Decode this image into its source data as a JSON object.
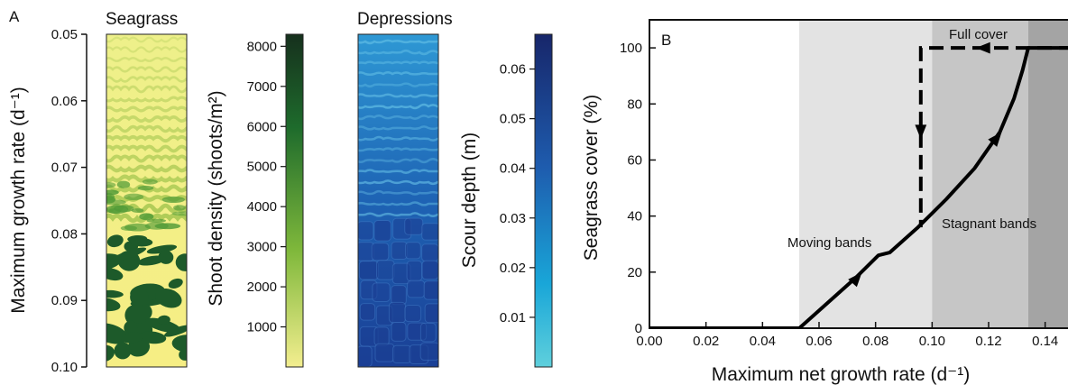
{
  "panel_a": {
    "letter": "A",
    "seagrass_title": "Seagrass",
    "depressions_title": "Depressions",
    "ylabel": "Maximum growth rate (d⁻¹)",
    "yticks": [
      "0.05",
      "0.06",
      "0.07",
      "0.08",
      "0.09",
      "0.10"
    ],
    "shoot_cbar": {
      "label": "Shoot density (shoots/m²)",
      "ticks": [
        "1000",
        "2000",
        "3000",
        "4000",
        "5000",
        "6000",
        "7000",
        "8000"
      ],
      "colors": [
        "#f3ee8f",
        "#7fb83b",
        "#1e6b2c",
        "#16301d"
      ]
    },
    "scour_cbar": {
      "label": "Scour depth (m)",
      "ticks": [
        "0.01",
        "0.02",
        "0.03",
        "0.04",
        "0.05",
        "0.06"
      ],
      "colors": [
        "#5fd0dc",
        "#19a6d8",
        "#1e5cae",
        "#17266a"
      ]
    }
  },
  "chart_data": [
    {
      "type": "heatmap",
      "title": "Seagrass",
      "ylabel": "Maximum growth rate (d⁻¹)",
      "ylim": [
        0.05,
        0.1
      ],
      "yticks": [
        0.05,
        0.06,
        0.07,
        0.08,
        0.09,
        0.1
      ],
      "colorbar_label": "Shoot density (shoots/m²)",
      "colorbar_range": [
        0,
        8300
      ]
    },
    {
      "type": "heatmap",
      "title": "Depressions",
      "ylim": [
        0.05,
        0.1
      ],
      "colorbar_label": "Scour depth (m)",
      "colorbar_range": [
        0,
        0.067
      ]
    },
    {
      "type": "line",
      "panel": "B",
      "xlabel": "Maximum net growth rate (d⁻¹)",
      "ylabel": "Seagrass cover (%)",
      "xlim": [
        0,
        0.15
      ],
      "ylim": [
        0,
        110
      ],
      "xticks": [
        "0.00",
        "0.02",
        "0.04",
        "0.06",
        "0.08",
        "0.10",
        "0.12",
        "0.14"
      ],
      "yticks": [
        "0",
        "20",
        "40",
        "60",
        "80",
        "100"
      ],
      "regions": [
        {
          "x0": 0.053,
          "x1": 0.1,
          "color": "#e3e3e3"
        },
        {
          "x0": 0.1,
          "x1": 0.134,
          "color": "#c6c6c6"
        },
        {
          "x0": 0.134,
          "x1": 0.15,
          "color": "#a4a4a4"
        }
      ],
      "series": [
        {
          "style": "solid",
          "x": [
            0.0,
            0.053,
            0.063,
            0.073,
            0.081,
            0.085,
            0.095,
            0.105,
            0.115,
            0.124,
            0.129,
            0.132,
            0.134,
            0.15
          ],
          "y": [
            0,
            0,
            9,
            18,
            26,
            27,
            36,
            46,
            57,
            70,
            82,
            92,
            100,
            100
          ]
        },
        {
          "style": "dashed",
          "x": [
            0.15,
            0.096,
            0.096,
            0.096
          ],
          "y": [
            100,
            100,
            68,
            36
          ]
        }
      ],
      "annotations": [
        "Full cover",
        "Moving bands",
        "Stagnant bands"
      ],
      "panel_letter": "B"
    }
  ]
}
